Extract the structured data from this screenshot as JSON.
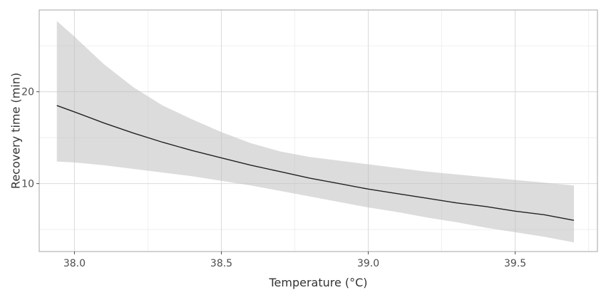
{
  "chart_data": {
    "type": "line",
    "title": "",
    "xlabel": "Temperature (°C)",
    "ylabel": "Recovery time (min)",
    "xlim": [
      37.88,
      39.78
    ],
    "ylim": [
      2.6,
      28.9
    ],
    "x_ticks": [
      38.0,
      38.5,
      39.0,
      39.5
    ],
    "x_tick_labels": [
      "38.0",
      "38.5",
      "39.0",
      "39.5"
    ],
    "y_ticks": [
      10,
      20
    ],
    "y_tick_labels": [
      "10",
      "20"
    ],
    "grid": true,
    "legend": "none",
    "series": [
      {
        "x": [
          37.94,
          38.0,
          38.1,
          38.2,
          38.3,
          38.4,
          38.5,
          38.6,
          38.7,
          38.8,
          38.9,
          39.0,
          39.1,
          39.2,
          39.3,
          39.4,
          39.5,
          39.6,
          39.7
        ],
        "y": [
          18.5,
          17.8,
          16.6,
          15.5,
          14.5,
          13.6,
          12.8,
          12.0,
          11.3,
          10.6,
          10.0,
          9.4,
          8.9,
          8.4,
          7.9,
          7.5,
          7.0,
          6.6,
          6.0
        ],
        "lower": [
          12.4,
          12.3,
          12.0,
          11.6,
          11.2,
          10.8,
          10.3,
          9.8,
          9.2,
          8.6,
          8.0,
          7.4,
          6.9,
          6.3,
          5.8,
          5.2,
          4.7,
          4.2,
          3.6
        ],
        "upper": [
          27.7,
          26.0,
          23.0,
          20.5,
          18.5,
          17.0,
          15.6,
          14.4,
          13.5,
          12.9,
          12.5,
          12.1,
          11.7,
          11.3,
          11.0,
          10.7,
          10.4,
          10.1,
          9.8
        ]
      }
    ],
    "colors": {
      "line": "#222222",
      "band": "#bfbfbf",
      "grid": "#dcdcdc",
      "panel_border": "#b3b3b3"
    }
  }
}
